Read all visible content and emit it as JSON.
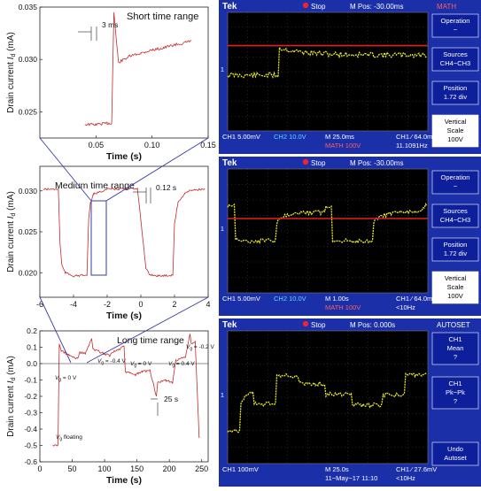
{
  "left_panels": {
    "ylabel_main": "Drain current",
    "ylabel_sub": "d",
    "ylabel_unit": " (mA)",
    "ylabel_prefix": "I",
    "xlabel": "Time (s)"
  },
  "chart_data": [
    {
      "type": "line",
      "title": "Short time range",
      "annotation": "3 ms",
      "xlabel": "Time (s)",
      "ylabel": "Drain current I_d (mA)",
      "xlim": [
        0.0,
        0.15
      ],
      "ylim": [
        0.0225,
        0.035
      ],
      "xticks": [
        "0.05",
        "0.10",
        "0.15"
      ],
      "yticks": [
        "0.025",
        "0.030",
        "0.035"
      ],
      "series": [
        {
          "x": [
            0.04,
            0.05,
            0.06,
            0.064,
            0.066,
            0.07,
            0.08,
            0.09,
            0.1,
            0.11,
            0.12,
            0.13,
            0.135
          ],
          "y": [
            0.0238,
            0.0238,
            0.0239,
            0.0239,
            0.0345,
            0.0297,
            0.0303,
            0.0306,
            0.0309,
            0.0311,
            0.0314,
            0.0316,
            0.0318
          ]
        }
      ]
    },
    {
      "type": "line",
      "title": "Medium time range",
      "annotation": "0.12 s",
      "xlabel": "Time (s)",
      "ylabel": "Drain current I_d (mA)",
      "xlim": [
        -6,
        4
      ],
      "ylim": [
        0.017,
        0.033
      ],
      "xticks": [
        "-6",
        "-4",
        "-2",
        "0",
        "2",
        "4"
      ],
      "yticks": [
        "0.020",
        "0.025",
        "0.030"
      ],
      "series": [
        {
          "x": [
            -5.8,
            -4.9,
            -4.8,
            -4.7,
            -4.5,
            -4.0,
            -3.2,
            -3.1,
            -3.0,
            -2.8,
            -2.0,
            -0.2,
            0.2,
            0.3,
            0.5,
            1.0,
            1.9,
            2.0,
            2.2,
            2.6,
            3.0,
            3.8
          ],
          "y": [
            0.0302,
            0.0302,
            0.0235,
            0.021,
            0.02,
            0.0196,
            0.0197,
            0.0265,
            0.0285,
            0.0296,
            0.0302,
            0.0303,
            0.0225,
            0.0205,
            0.0198,
            0.0196,
            0.0197,
            0.026,
            0.0285,
            0.0297,
            0.0301,
            0.0302
          ]
        }
      ]
    },
    {
      "type": "line",
      "title": "Long time range",
      "annotation": "25 s",
      "xlabel": "Time (s)",
      "ylabel": "Drain current I_d (mA)",
      "xlim": [
        0,
        260
      ],
      "ylim": [
        -0.6,
        0.2
      ],
      "xticks": [
        "0",
        "50",
        "100",
        "150",
        "200",
        "250"
      ],
      "yticks": [
        "-0.6",
        "-0.5",
        "-0.4",
        "-0.3",
        "-0.2",
        "-0.1",
        "0.0",
        "0.1",
        "0.2"
      ],
      "labels": [
        "V",
        "floating",
        "V",
        "= 0 V",
        "V",
        "= -0.4 V",
        "V",
        "= 0 V",
        "V",
        "= 0.4 V",
        "V",
        "= -0.2 V"
      ],
      "series": [
        {
          "x": [
            20,
            28,
            30,
            33,
            45,
            58,
            62,
            70,
            80,
            82,
            100,
            108,
            112,
            125,
            130,
            132,
            148,
            152,
            158,
            170,
            180,
            182,
            195,
            205,
            210,
            225,
            232,
            234,
            240,
            246
          ],
          "y": [
            -0.5,
            -0.5,
            0.12,
            0.08,
            0.05,
            0.03,
            0.07,
            0.06,
            0.15,
            0.09,
            0.06,
            0.05,
            0.07,
            0.09,
            0.11,
            -0.05,
            -0.07,
            -0.06,
            -0.05,
            -0.04,
            -0.2,
            -0.12,
            -0.1,
            -0.12,
            0.02,
            0.04,
            0.18,
            0.12,
            0.13,
            -0.45
          ]
        }
      ]
    }
  ],
  "scope_screens": [
    {
      "top_left": "Tek",
      "status": "Stop",
      "mpos": "M Pos: -30.00ms",
      "right_top": "MATH",
      "menu": [
        "Operation",
        "−",
        "Sources",
        "CH4−CH3",
        "Position",
        "1.72 div",
        "Vertical",
        "Scale",
        "100V"
      ],
      "bottom": [
        "CH1  5.00mV",
        "CH2  10.0V",
        "M 25.0ms",
        "MATH 100V",
        "CH1 ⁄ 64.0mV",
        "11.1091Hz"
      ]
    },
    {
      "top_left": "Tek",
      "status": "Stop",
      "mpos": "M Pos: -30.00ms",
      "right_top": "",
      "menu": [
        "Operation",
        "−",
        "Sources",
        "CH4−CH3",
        "Position",
        "1.72 div",
        "Vertical",
        "Scale",
        "100V"
      ],
      "bottom": [
        "CH1  5.00mV",
        "CH2  10.0V",
        "M 1.00s",
        "MATH 100V",
        "CH1 ⁄ 64.0mV",
        "<10Hz"
      ]
    },
    {
      "top_left": "Tek",
      "status": "Stop",
      "mpos": "M Pos: 0.000s",
      "right_top": "AUTOSET",
      "menu": [
        "CH1",
        "Mean",
        "?",
        "CH1",
        "Pk−Pk",
        "?",
        "Undo",
        "Autoset"
      ],
      "bottom": [
        "CH1  100mV",
        "",
        "M 25.0s",
        "11−May−17 11:10",
        "CH1 ⁄ 27.6mV",
        "<10Hz"
      ]
    }
  ],
  "colors": {
    "curve": "#c62828",
    "zoom_line": "#3a3aa8",
    "scope_blue": "#1a2fa8",
    "trace_yellow": "#e8e82a",
    "math_red": "#e32020",
    "menu_bg": "#0d1f9a"
  }
}
